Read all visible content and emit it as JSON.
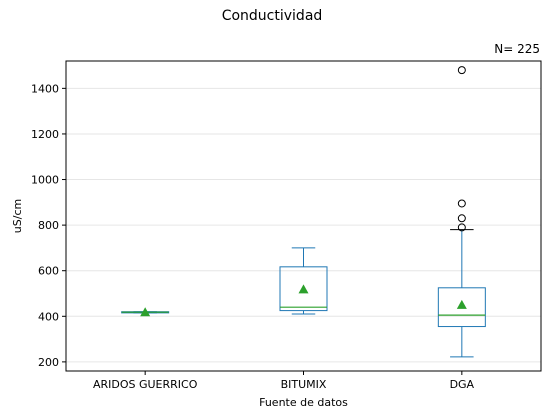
{
  "chart_data": {
    "type": "box",
    "title": "Conductividad",
    "annotation": "N= 225",
    "xlabel": "Fuente de datos",
    "ylabel": "uS/cm",
    "ylim": [
      160,
      1520
    ],
    "yticks": [
      200,
      400,
      600,
      800,
      1000,
      1200,
      1400
    ],
    "grid": "horizontal",
    "categories": [
      "ARIDOS GUERRICO",
      "BITUMIX",
      "DGA"
    ],
    "boxes": [
      {
        "category": "ARIDOS GUERRICO",
        "whisker_low": 415,
        "q1": 415,
        "median": 418,
        "q3": 420,
        "whisker_high": 420,
        "mean": 418,
        "outliers": []
      },
      {
        "category": "BITUMIX",
        "whisker_low": 410,
        "q1": 425,
        "median": 440,
        "q3": 617,
        "whisker_high": 700,
        "mean": 518,
        "outliers": []
      },
      {
        "category": "DGA",
        "whisker_low": 222,
        "q1": 355,
        "median": 405,
        "q3": 525,
        "whisker_high": 780,
        "mean": 450,
        "outliers": [
          790,
          830,
          895,
          1480
        ]
      }
    ],
    "colors": {
      "box": "#1f77b4",
      "median": "#2ca02c",
      "mean": "#2ca02c",
      "grid": "#e6e6e6",
      "axis": "#000000"
    }
  }
}
